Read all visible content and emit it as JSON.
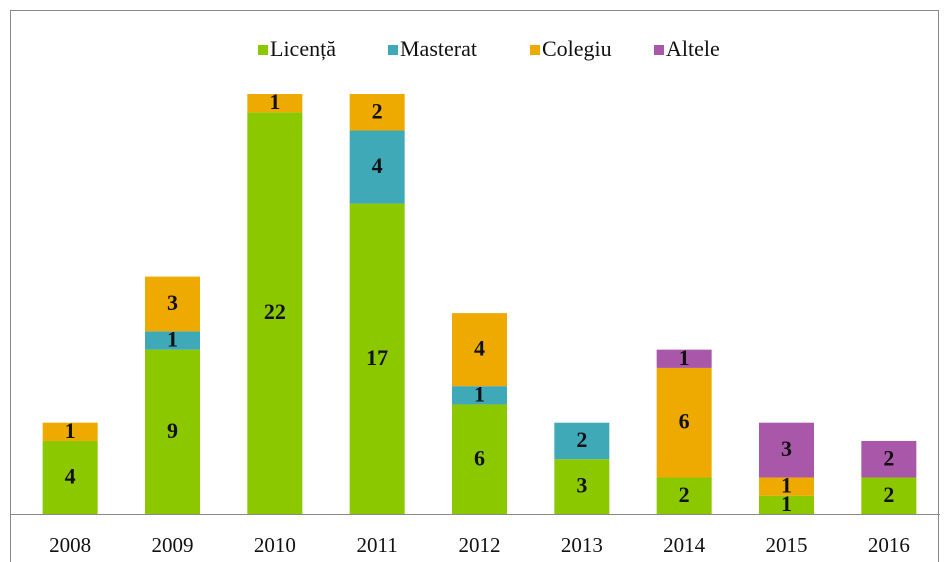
{
  "chart_data": {
    "type": "stacked_bar",
    "categories": [
      "2008",
      "2009",
      "2010",
      "2011",
      "2012",
      "2013",
      "2014",
      "2015",
      "2016"
    ],
    "series": [
      {
        "name": "Licență",
        "color": "#8cc800",
        "values": [
          4,
          9,
          22,
          17,
          6,
          3,
          2,
          1,
          2
        ]
      },
      {
        "name": "Masterat",
        "color": "#3fa9b8",
        "values": [
          null,
          1,
          null,
          4,
          1,
          2,
          null,
          null,
          null
        ]
      },
      {
        "name": "Colegiu",
        "color": "#eeaa00",
        "values": [
          1,
          3,
          1,
          2,
          4,
          null,
          6,
          1,
          null
        ]
      },
      {
        "name": "Altele",
        "color": "#a957a8",
        "values": [
          null,
          null,
          null,
          null,
          null,
          null,
          1,
          3,
          2
        ]
      }
    ],
    "legend": "top"
  }
}
